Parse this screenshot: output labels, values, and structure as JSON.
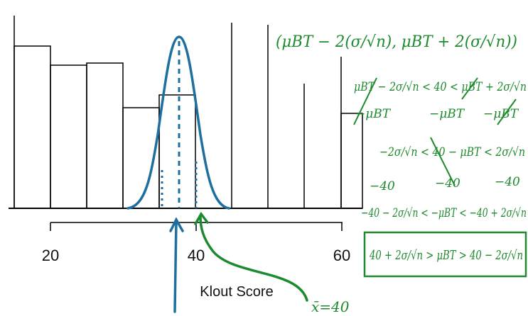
{
  "axis": {
    "ticks": [
      "20",
      "40",
      "60"
    ],
    "title": "Klout Score"
  },
  "colors": {
    "bars": "#000000",
    "curve": "#1d6fa0",
    "ink": "#1e8a2e"
  },
  "annotations": {
    "xbar_label": "x̄=40",
    "interval": "(μBT − 2(σ/√n), μBT + 2(σ/√n))",
    "line1": "μBT − 2σ/√n < 40 < μBT + 2σ/√n",
    "line1_sub": [
      "−μBT",
      "−μBT",
      "−μBT"
    ],
    "line2": "−2σ/√n < 40 − μBT < 2σ/√n",
    "line2_sub": [
      "−40",
      "−40",
      "−40"
    ],
    "line3": "−40 − 2σ/√n < −μBT < −40 + 2σ/√n",
    "result": "40 + 2σ/√n > μBT > 40 − 2σ/√n"
  }
}
